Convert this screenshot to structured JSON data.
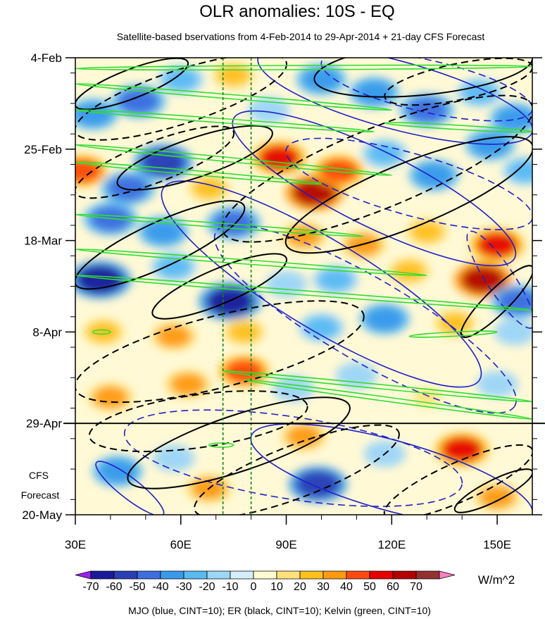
{
  "chart_data": {
    "type": "heatmap",
    "title": "OLR anomalies: 10S - EQ",
    "subtitle": "Satellite-based bservations from 4-Feb-2014 to 29-Apr-2014 + 21-day CFS Forecast",
    "x_axis": {
      "label": "",
      "range": [
        30,
        160
      ],
      "ticks": [
        {
          "value": 30,
          "label": "30E"
        },
        {
          "value": 60,
          "label": "60E"
        },
        {
          "value": 90,
          "label": "90E"
        },
        {
          "value": 120,
          "label": "120E"
        },
        {
          "value": 150,
          "label": "150E"
        }
      ]
    },
    "y_axis": {
      "label": "",
      "range_days": [
        0,
        105
      ],
      "direction": "time increases downward",
      "ticks": [
        {
          "day": 0,
          "label": "4-Feb"
        },
        {
          "day": 21,
          "label": "25-Feb"
        },
        {
          "day": 42,
          "label": "18-Mar"
        },
        {
          "day": 63,
          "label": "8-Apr"
        },
        {
          "day": 84,
          "label": "29-Apr"
        },
        {
          "day": 105,
          "label": "20-May"
        }
      ]
    },
    "forecast_start_day": 84,
    "forecast_label_line1": "CFS",
    "forecast_label_line2": "Forecast",
    "reference_longitudes": [
      72,
      80
    ],
    "colorbar": {
      "units": "W/m^2",
      "levels": [
        -70,
        -60,
        -50,
        -40,
        -30,
        -20,
        -10,
        0,
        10,
        20,
        30,
        40,
        50,
        60,
        70
      ],
      "colors": [
        "#a020f0",
        "#1a1a9a",
        "#2a3fb5",
        "#3d6fde",
        "#3a9aea",
        "#59bbf2",
        "#9dd6f7",
        "#d4eefc",
        "#fffbd0",
        "#ffe37a",
        "#ffc020",
        "#ff9a10",
        "#ff4a10",
        "#e60000",
        "#b40000",
        "#943232",
        "#ff80c0"
      ]
    },
    "anomaly_blobs": [
      {
        "lon": 35,
        "day": 13,
        "value": -40
      },
      {
        "lon": 48,
        "day": 10,
        "value": -50
      },
      {
        "lon": 60,
        "day": 5,
        "value": -30
      },
      {
        "lon": 75,
        "day": 4,
        "value": 20
      },
      {
        "lon": 85,
        "day": 12,
        "value": -20
      },
      {
        "lon": 100,
        "day": 5,
        "value": -40
      },
      {
        "lon": 115,
        "day": 8,
        "value": -40
      },
      {
        "lon": 130,
        "day": 12,
        "value": -50
      },
      {
        "lon": 145,
        "day": 8,
        "value": -30
      },
      {
        "lon": 155,
        "day": 14,
        "value": -40
      },
      {
        "lon": 32,
        "day": 26,
        "value": 40
      },
      {
        "lon": 45,
        "day": 30,
        "value": -50
      },
      {
        "lon": 55,
        "day": 24,
        "value": -60
      },
      {
        "lon": 68,
        "day": 30,
        "value": 20
      },
      {
        "lon": 88,
        "day": 23,
        "value": 50
      },
      {
        "lon": 98,
        "day": 31,
        "value": 60
      },
      {
        "lon": 105,
        "day": 26,
        "value": 40
      },
      {
        "lon": 118,
        "day": 22,
        "value": -30
      },
      {
        "lon": 132,
        "day": 27,
        "value": -40
      },
      {
        "lon": 148,
        "day": 20,
        "value": -40
      },
      {
        "lon": 158,
        "day": 26,
        "value": -30
      },
      {
        "lon": 40,
        "day": 37,
        "value": -50
      },
      {
        "lon": 55,
        "day": 40,
        "value": -40
      },
      {
        "lon": 75,
        "day": 38,
        "value": -50
      },
      {
        "lon": 95,
        "day": 41,
        "value": 30
      },
      {
        "lon": 112,
        "day": 43,
        "value": 30
      },
      {
        "lon": 130,
        "day": 40,
        "value": 20
      },
      {
        "lon": 150,
        "day": 43,
        "value": 50
      },
      {
        "lon": 37,
        "day": 51,
        "value": -70
      },
      {
        "lon": 58,
        "day": 48,
        "value": -30
      },
      {
        "lon": 74,
        "day": 56,
        "value": -70
      },
      {
        "lon": 90,
        "day": 52,
        "value": -20
      },
      {
        "lon": 104,
        "day": 51,
        "value": -30
      },
      {
        "lon": 125,
        "day": 49,
        "value": 20
      },
      {
        "lon": 146,
        "day": 51,
        "value": 60
      },
      {
        "lon": 156,
        "day": 56,
        "value": -50
      },
      {
        "lon": 38,
        "day": 63,
        "value": 20
      },
      {
        "lon": 58,
        "day": 64,
        "value": 30
      },
      {
        "lon": 78,
        "day": 63,
        "value": 20
      },
      {
        "lon": 100,
        "day": 62,
        "value": -30
      },
      {
        "lon": 118,
        "day": 60,
        "value": -40
      },
      {
        "lon": 138,
        "day": 61,
        "value": 20
      },
      {
        "lon": 155,
        "day": 63,
        "value": -20
      },
      {
        "lon": 40,
        "day": 78,
        "value": 30
      },
      {
        "lon": 62,
        "day": 75,
        "value": 30
      },
      {
        "lon": 78,
        "day": 72,
        "value": 40
      },
      {
        "lon": 92,
        "day": 76,
        "value": -20
      },
      {
        "lon": 110,
        "day": 73,
        "value": -20
      },
      {
        "lon": 130,
        "day": 78,
        "value": 10
      },
      {
        "lon": 150,
        "day": 75,
        "value": -20
      },
      {
        "lon": 42,
        "day": 95,
        "value": -40
      },
      {
        "lon": 58,
        "day": 92,
        "value": -20
      },
      {
        "lon": 68,
        "day": 99,
        "value": 30
      },
      {
        "lon": 95,
        "day": 87,
        "value": 30
      },
      {
        "lon": 99,
        "day": 98,
        "value": -60
      },
      {
        "lon": 118,
        "day": 91,
        "value": -20
      },
      {
        "lon": 140,
        "day": 90,
        "value": 50
      },
      {
        "lon": 150,
        "day": 101,
        "value": 30
      }
    ],
    "overlays": {
      "mjo": {
        "name": "MJO",
        "color": "#2020c8",
        "cint": 10,
        "segments": [
          {
            "lon1": 82,
            "day1": 0,
            "lon2": 160,
            "day2": 17,
            "style": "solid"
          },
          {
            "lon1": 100,
            "day1": 1,
            "lon2": 160,
            "day2": 12,
            "style": "dashed"
          },
          {
            "lon1": 75,
            "day1": 14,
            "lon2": 155,
            "day2": 46,
            "style": "solid"
          },
          {
            "lon1": 90,
            "day1": 21,
            "lon2": 160,
            "day2": 37,
            "style": "dashed"
          },
          {
            "lon1": 55,
            "day1": 30,
            "lon2": 145,
            "day2": 74,
            "style": "solid"
          },
          {
            "lon1": 70,
            "day1": 40,
            "lon2": 155,
            "day2": 80,
            "style": "dashed"
          },
          {
            "lon1": 44,
            "day1": 86,
            "lon2": 140,
            "day2": 98,
            "style": "dashed"
          },
          {
            "lon1": 36,
            "day1": 93,
            "lon2": 55,
            "day2": 105,
            "style": "solid"
          },
          {
            "lon1": 80,
            "day1": 87,
            "lon2": 160,
            "day2": 105,
            "style": "solid"
          },
          {
            "lon1": 142,
            "day1": 40,
            "lon2": 160,
            "day2": 62,
            "style": "dashed"
          }
        ]
      },
      "er": {
        "name": "ER",
        "color": "#000000",
        "cint": 10,
        "segments": [
          {
            "lon1": 30,
            "day1": 11,
            "lon2": 62,
            "day2": 1,
            "style": "solid"
          },
          {
            "lon1": 30,
            "day1": 17,
            "lon2": 90,
            "day2": 1,
            "style": "dashed"
          },
          {
            "lon1": 98,
            "day1": 5,
            "lon2": 160,
            "day2": 0,
            "style": "solid"
          },
          {
            "lon1": 118,
            "day1": 9,
            "lon2": 160,
            "day2": 2,
            "style": "dashed"
          },
          {
            "lon1": 30,
            "day1": 31,
            "lon2": 75,
            "day2": 17,
            "style": "dashed"
          },
          {
            "lon1": 42,
            "day1": 29,
            "lon2": 86,
            "day2": 17,
            "style": "solid"
          },
          {
            "lon1": 72,
            "day1": 40,
            "lon2": 160,
            "day2": 11,
            "style": "dashed"
          },
          {
            "lon1": 90,
            "day1": 43,
            "lon2": 160,
            "day2": 20,
            "style": "solid"
          },
          {
            "lon1": 30,
            "day1": 52,
            "lon2": 78,
            "day2": 34,
            "style": "solid"
          },
          {
            "lon1": 52,
            "day1": 59,
            "lon2": 90,
            "day2": 46,
            "style": "solid"
          },
          {
            "lon1": 30,
            "day1": 76,
            "lon2": 112,
            "day2": 59,
            "style": "dashed"
          },
          {
            "lon1": 34,
            "day1": 87,
            "lon2": 96,
            "day2": 80,
            "style": "dashed"
          },
          {
            "lon1": 45,
            "day1": 97,
            "lon2": 108,
            "day2": 80,
            "style": "solid"
          },
          {
            "lon1": 64,
            "day1": 104,
            "lon2": 122,
            "day2": 86,
            "style": "dashed"
          },
          {
            "lon1": 118,
            "day1": 105,
            "lon2": 160,
            "day2": 90,
            "style": "dashed"
          },
          {
            "lon1": 140,
            "day1": 64,
            "lon2": 160,
            "day2": 48,
            "style": "solid"
          },
          {
            "lon1": 138,
            "day1": 104,
            "lon2": 160,
            "day2": 95,
            "style": "solid"
          }
        ]
      },
      "kelvin": {
        "name": "Kelvin",
        "color": "#33dd33",
        "cint": 10,
        "segments": [
          {
            "lon1": 30,
            "day1": 2.5,
            "lon2": 160,
            "day2": 2,
            "style": "solid"
          },
          {
            "lon1": 30,
            "day1": 6,
            "lon2": 120,
            "day2": 12,
            "style": "solid"
          },
          {
            "lon1": 30,
            "day1": 12,
            "lon2": 115,
            "day2": 17,
            "style": "solid"
          },
          {
            "lon1": 118,
            "day1": 15,
            "lon2": 160,
            "day2": 17,
            "style": "solid"
          },
          {
            "lon1": 30,
            "day1": 20,
            "lon2": 120,
            "day2": 27,
            "style": "solid"
          },
          {
            "lon1": 30,
            "day1": 24,
            "lon2": 100,
            "day2": 29,
            "style": "solid"
          },
          {
            "lon1": 30,
            "day1": 36,
            "lon2": 112,
            "day2": 41,
            "style": "solid"
          },
          {
            "lon1": 30,
            "day1": 44,
            "lon2": 130,
            "day2": 50,
            "style": "solid"
          },
          {
            "lon1": 30,
            "day1": 50,
            "lon2": 160,
            "day2": 58,
            "style": "solid"
          },
          {
            "lon1": 35,
            "day1": 63,
            "lon2": 40,
            "day2": 63,
            "style": "solid"
          },
          {
            "lon1": 125,
            "day1": 64,
            "lon2": 150,
            "day2": 63,
            "style": "solid"
          },
          {
            "lon1": 72,
            "day1": 72,
            "lon2": 160,
            "day2": 79,
            "style": "solid"
          },
          {
            "lon1": 78,
            "day1": 74,
            "lon2": 160,
            "day2": 83,
            "style": "solid"
          },
          {
            "lon1": 68,
            "day1": 89,
            "lon2": 75,
            "day2": 89,
            "style": "solid"
          }
        ]
      }
    },
    "footnote": "MJO (blue, CINT=10); ER (black, CINT=10); Kelvin (green, CINT=10)"
  }
}
